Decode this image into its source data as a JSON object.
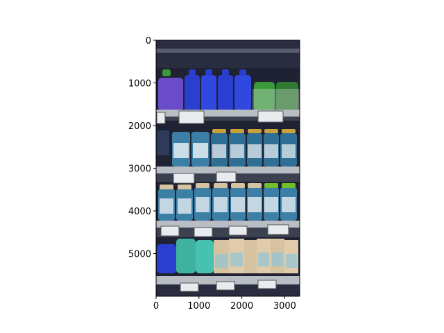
{
  "figure": {
    "image_subject": "supermarket shelf with baby food pouches, jars and boxed products with shelf price labels",
    "palette": {
      "shelf_metal": "#b8bec4",
      "shelf_shadow": "#3c4150",
      "background_dark": "#1f2233",
      "pouch_blue": "#2a3fd0",
      "pouch_purple": "#6a4bc8",
      "pouch_green": "#3a9a3a",
      "jar_glass": "#3b7fa6",
      "jar_label": "#e6eef2",
      "lid_gold": "#c9a13a",
      "lid_green": "#6fbf2a",
      "box_beige": "#d8c3a0",
      "price_tag": "#e8ecef"
    }
  },
  "chart_data": {
    "type": "image",
    "xlim": [
      0,
      3350
    ],
    "ylim": [
      6000,
      0
    ],
    "xticks": [
      0,
      1000,
      2000,
      3000
    ],
    "yticks": [
      0,
      1000,
      2000,
      3000,
      4000,
      5000
    ],
    "xtick_labels": [
      "0",
      "1000",
      "2000",
      "3000"
    ],
    "ytick_labels": [
      "0",
      "1000",
      "2000",
      "3000",
      "4000",
      "5000"
    ]
  }
}
